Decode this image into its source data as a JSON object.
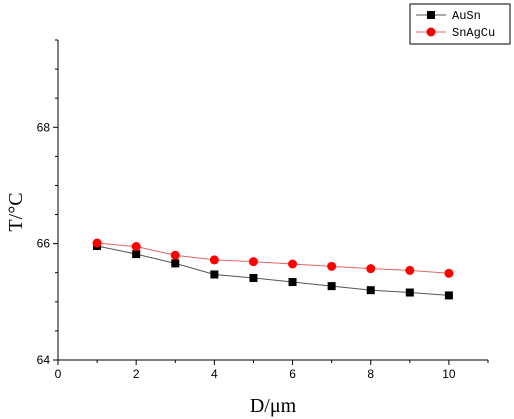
{
  "chart_data": {
    "type": "line",
    "title": "",
    "xlabel": "D/μm",
    "ylabel": "T/°C",
    "xlim": [
      0,
      11
    ],
    "ylim": [
      64,
      69.5
    ],
    "x_ticks": [
      0,
      2,
      4,
      6,
      8,
      10
    ],
    "y_ticks": [
      64,
      66,
      68
    ],
    "grid": false,
    "legend_position": "top-right",
    "x": [
      1,
      2,
      3,
      4,
      5,
      6,
      7,
      8,
      9,
      10
    ],
    "series": [
      {
        "name": "AuSn",
        "marker": "square",
        "line_color": "#555555",
        "marker_color": "#000000",
        "values": [
          65.96,
          65.82,
          65.66,
          65.47,
          65.41,
          65.34,
          65.27,
          65.2,
          65.16,
          65.11
        ]
      },
      {
        "name": "SnAgCu",
        "marker": "circle",
        "line_color": "#e26666",
        "marker_color": "#ff0000",
        "values": [
          66.01,
          65.95,
          65.8,
          65.72,
          65.69,
          65.65,
          65.61,
          65.57,
          65.54,
          65.49
        ]
      }
    ]
  }
}
